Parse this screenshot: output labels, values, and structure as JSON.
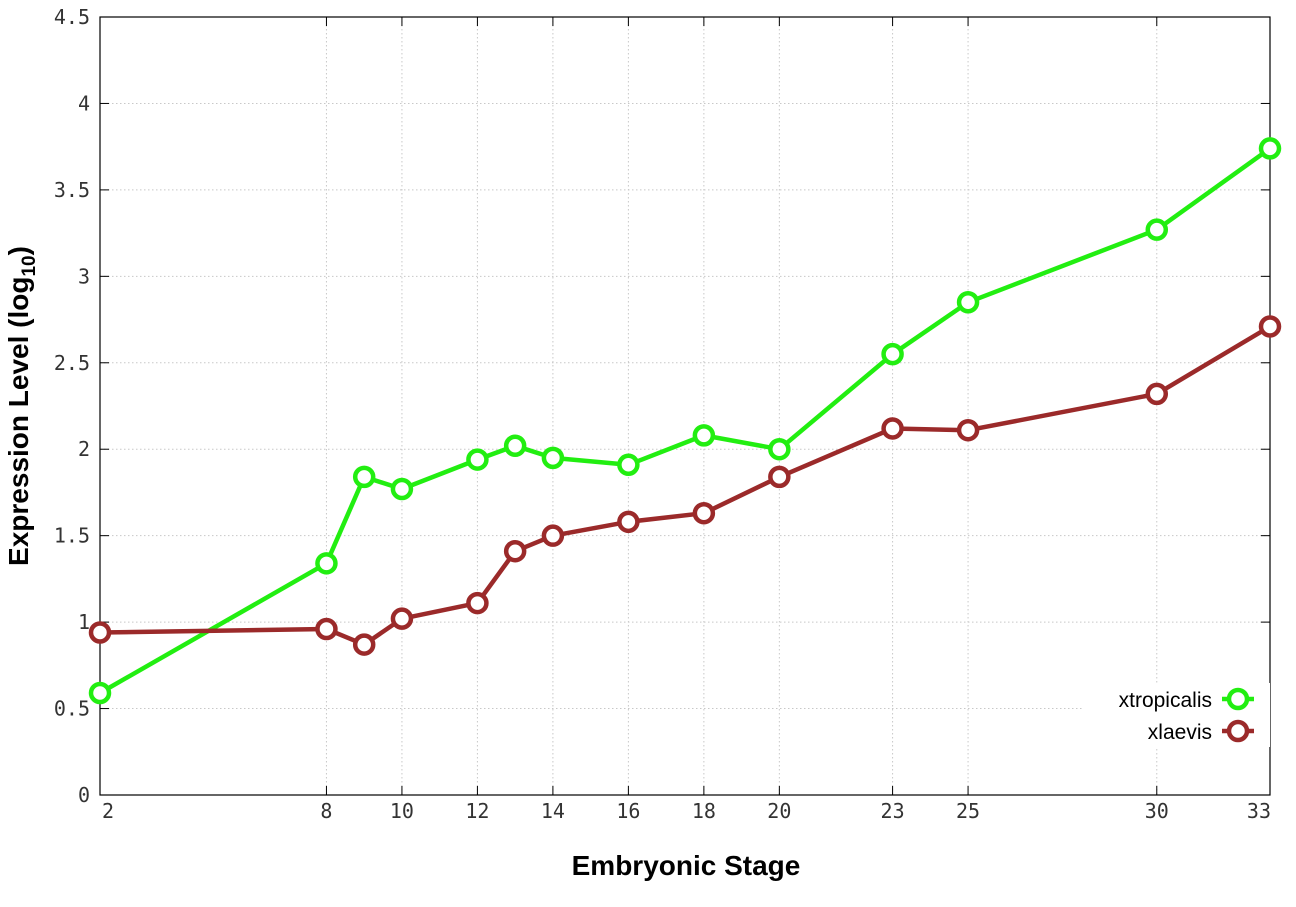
{
  "chart_data": {
    "type": "line",
    "x": [
      2,
      8,
      9,
      10,
      12,
      13,
      14,
      16,
      18,
      20,
      23,
      25,
      30,
      33
    ],
    "x_tick_labels": [
      "2",
      "8",
      "10",
      "12",
      "14",
      "16",
      "18",
      "20",
      "23",
      "25",
      "30",
      "33"
    ],
    "x_tick_values": [
      2,
      8,
      10,
      12,
      14,
      16,
      18,
      20,
      23,
      25,
      30,
      33
    ],
    "y_tick_labels": [
      "0",
      "0.5",
      "1",
      "1.5",
      "2",
      "2.5",
      "3",
      "3.5",
      "4",
      "4.5"
    ],
    "y_tick_values": [
      0,
      0.5,
      1,
      1.5,
      2,
      2.5,
      3,
      3.5,
      4,
      4.5
    ],
    "xlim": [
      2,
      33
    ],
    "ylim": [
      0,
      4.5
    ],
    "xlabel": "Embryonic Stage",
    "ylabel_main": "Expression Level (log",
    "ylabel_sub": "10",
    "ylabel_close": ")",
    "grid": true,
    "legend_position": "bottom-right",
    "series": [
      {
        "name": "xtropicalis",
        "color": "#22ee11",
        "values": [
          0.59,
          1.34,
          1.84,
          1.77,
          1.94,
          2.02,
          1.95,
          1.91,
          2.08,
          2.0,
          2.55,
          2.85,
          3.27,
          3.74
        ]
      },
      {
        "name": "xlaevis",
        "color": "#9b2a2a",
        "values": [
          0.94,
          0.96,
          0.87,
          1.02,
          1.11,
          1.41,
          1.5,
          1.58,
          1.63,
          1.84,
          2.12,
          2.11,
          2.32,
          2.71
        ]
      }
    ]
  }
}
